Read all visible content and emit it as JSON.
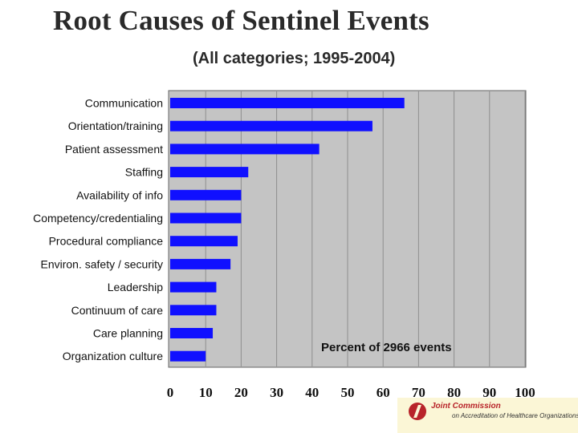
{
  "chart_data": {
    "type": "bar",
    "orientation": "horizontal",
    "title": "Root Causes of Sentinel Events",
    "subtitle": "(All categories; 1995-2004)",
    "categories": [
      "Communication",
      "Orientation/training",
      "Patient assessment",
      "Staffing",
      "Availability of info",
      "Competency/credentialing",
      "Procedural compliance",
      "Environ. safety / security",
      "Leadership",
      "Continuum of care",
      "Care planning",
      "Organization culture"
    ],
    "values": [
      66,
      57,
      42,
      22,
      20,
      20,
      19,
      17,
      13,
      13,
      12,
      10
    ],
    "xlim": [
      0,
      100
    ],
    "xticks": [
      "0",
      "10",
      "20",
      "30",
      "40",
      "50",
      "60",
      "70",
      "80",
      "90",
      "100"
    ],
    "annotation": "Percent of 2966 events",
    "grid": true,
    "colors": {
      "bar": "#1010ff",
      "plot_background": "#c4c4c4",
      "grid": "#8e8e8e"
    }
  },
  "logo": {
    "line1": "Joint Commission",
    "line2": "on Accreditation of Healthcare Organizations"
  }
}
